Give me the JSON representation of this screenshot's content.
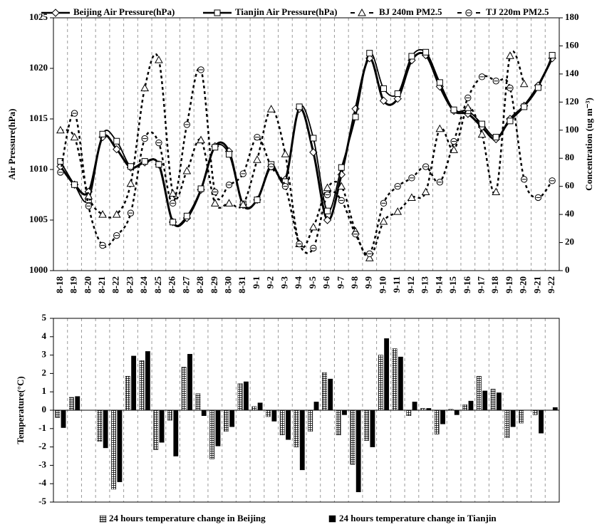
{
  "chart_data": [
    {
      "type": "line",
      "y_label": "Air Pressure(hPa)",
      "y2_label": "Concentration (ug m⁻³)",
      "categories": [
        "8-18",
        "8-19",
        "8-20",
        "8-21",
        "8-22",
        "8-23",
        "8-24",
        "8-25",
        "8-26",
        "8-27",
        "8-28",
        "8-29",
        "8-30",
        "8-31",
        "9-1",
        "9-2",
        "9-3",
        "9-4",
        "9-5",
        "9-6",
        "9-7",
        "9-8",
        "9-9",
        "9-10",
        "9-11",
        "9-12",
        "9-13",
        "9-14",
        "9-15",
        "9-16",
        "9-17",
        "9-18",
        "9-19",
        "9-20",
        "9-21",
        "9-22"
      ],
      "ylim": [
        1000,
        1025
      ],
      "yticks": [
        1000,
        1005,
        1010,
        1015,
        1020,
        1025
      ],
      "y2lim": [
        0,
        180
      ],
      "y2ticks": [
        0,
        20,
        40,
        60,
        80,
        100,
        120,
        140,
        160,
        180
      ],
      "x_grid": true,
      "legend": "top",
      "series": [
        {
          "name": "Beijing Air Pressure(hPa)",
          "color": "#000000",
          "line": "solid",
          "marker": "diamond",
          "values": [
            1010.3,
            1008.5,
            1007.8,
            1013.2,
            1012,
            1010.2,
            1010.7,
            1010.5,
            1004.8,
            1005.2,
            1008,
            1012.3,
            1011.8,
            1006.5,
            1007,
            1010.3,
            1009,
            1016,
            1011.7,
            1005,
            1009.5,
            1016,
            1021,
            1016.8,
            1017,
            1020.8,
            1021.3,
            1018.2,
            1015.8,
            1015.5,
            1014.2,
            1013,
            1015,
            1016.3,
            1018.3,
            1021
          ]
        },
        {
          "name": "Tianjin Air Pressure(hPa)",
          "color": "#000000",
          "line": "solid",
          "marker": "square",
          "values": [
            1010.8,
            1008.5,
            1007,
            1013.5,
            1012.8,
            1010.3,
            1010.8,
            1010.5,
            1004.8,
            1005.4,
            1008.1,
            1012.2,
            1011.5,
            1006.6,
            1007,
            1010.5,
            1008.8,
            1016.2,
            1013.1,
            1005.9,
            1010.2,
            1015.2,
            1021.5,
            1018,
            1017.5,
            1021.2,
            1021.6,
            1018.6,
            1015.9,
            1015.8,
            1014.5,
            1013.2,
            1014.8,
            1016.2,
            1018.1,
            1021.3
          ]
        },
        {
          "name": "BJ 240m PM2.5",
          "color": "#000000",
          "line": "dotted",
          "marker": "triangle",
          "axis": "y2",
          "values": [
            100,
            95,
            53,
            40,
            40,
            62,
            130,
            150,
            55,
            71,
            93,
            48,
            48,
            47,
            79,
            115,
            83,
            19,
            31,
            59,
            60,
            28,
            9,
            35,
            42,
            52,
            56,
            101,
            86,
            116,
            97,
            56,
            153,
            133,
            null,
            null
          ]
        },
        {
          "name": "TJ 220m PM2.5",
          "color": "#000000",
          "line": "dotted",
          "marker": "circle",
          "axis": "y2",
          "values": [
            70,
            112,
            46,
            18,
            25,
            41,
            94,
            91,
            48,
            104,
            143,
            56,
            61,
            69,
            95,
            74,
            60,
            19,
            16,
            54,
            50,
            26,
            12,
            48,
            60,
            66,
            74,
            63,
            92,
            123,
            138,
            135,
            130,
            65,
            52,
            64
          ]
        }
      ]
    },
    {
      "type": "bar",
      "y_label": "Temperature(°C)",
      "ylim": [
        -5,
        5
      ],
      "yticks": [
        -5,
        -4,
        -3,
        -2,
        -1,
        0,
        1,
        2,
        3,
        4,
        5
      ],
      "x_grid": true,
      "legend": "bottom",
      "series": [
        {
          "name": "24 hours temperature change in Beijing",
          "color": "#000000",
          "hatch": "grid",
          "values": [
            -0.4,
            0.7,
            0,
            -1.7,
            -4.3,
            1.85,
            2.7,
            -2.15,
            -0.55,
            2.35,
            0.9,
            -2.65,
            -1.15,
            1.45,
            0.2,
            -0.35,
            -1.35,
            -2,
            -1.15,
            2.05,
            -1.35,
            -2.95,
            -1.65,
            3,
            3.35,
            -0.3,
            0.1,
            -1.3,
            0.05,
            0.3,
            1.85,
            1.15,
            -1.5,
            -0.7,
            -0.25,
            0
          ]
        },
        {
          "name": "24 hours temperature change in  Tianjin",
          "color": "#000000",
          "values": [
            -0.95,
            0.75,
            0,
            -2.05,
            -3.9,
            2.95,
            3.2,
            -1.75,
            -2.5,
            3.05,
            -0.3,
            -1.95,
            -0.9,
            1.55,
            0.4,
            -0.6,
            -1.6,
            -3.25,
            0.45,
            1.7,
            -0.25,
            -4.45,
            -2,
            3.9,
            2.9,
            0.45,
            0.1,
            -0.75,
            -0.25,
            0.5,
            1.05,
            0.95,
            -0.9,
            0,
            -1.25,
            0.15
          ]
        }
      ]
    }
  ]
}
